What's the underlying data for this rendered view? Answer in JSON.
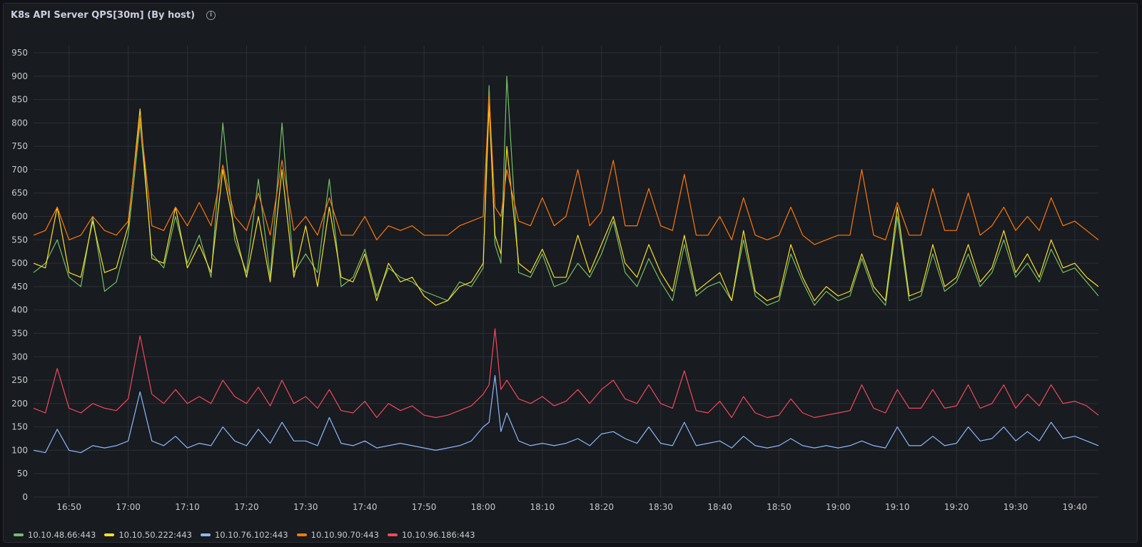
{
  "panel": {
    "title": "K8s API Server QPS[30m] (By host)",
    "info_icon": "info-circle-icon"
  },
  "colors": {
    "background": "#181b1f",
    "grid": "#2c2f36"
  },
  "chart_data": {
    "type": "line",
    "ylim": [
      0,
      950
    ],
    "yticks": [
      0,
      50,
      100,
      150,
      200,
      250,
      300,
      350,
      400,
      450,
      500,
      550,
      600,
      650,
      700,
      750,
      800,
      850,
      900,
      950
    ],
    "xlim": [
      "16:44",
      "19:44"
    ],
    "xticks": [
      "16:50",
      "17:00",
      "17:10",
      "17:20",
      "17:30",
      "17:40",
      "17:50",
      "18:00",
      "18:10",
      "18:20",
      "18:30",
      "18:40",
      "18:50",
      "19:00",
      "19:10",
      "19:20",
      "19:30",
      "19:40"
    ],
    "series": [
      {
        "name": "10.10.48.66:443",
        "color": "#73bf69",
        "x": [
          "16:44",
          "16:46",
          "16:48",
          "16:50",
          "16:52",
          "16:54",
          "16:56",
          "16:58",
          "17:00",
          "17:02",
          "17:04",
          "17:06",
          "17:08",
          "17:10",
          "17:12",
          "17:14",
          "17:16",
          "17:18",
          "17:20",
          "17:22",
          "17:24",
          "17:26",
          "17:28",
          "17:30",
          "17:32",
          "17:34",
          "17:36",
          "17:38",
          "17:40",
          "17:42",
          "17:44",
          "17:46",
          "17:48",
          "17:50",
          "17:52",
          "17:54",
          "17:56",
          "17:58",
          "18:00",
          "18:01",
          "18:02",
          "18:03",
          "18:04",
          "18:06",
          "18:08",
          "18:10",
          "18:12",
          "18:14",
          "18:16",
          "18:18",
          "18:20",
          "18:22",
          "18:24",
          "18:26",
          "18:28",
          "18:30",
          "18:32",
          "18:34",
          "18:36",
          "18:38",
          "18:40",
          "18:42",
          "18:44",
          "18:46",
          "18:48",
          "18:50",
          "18:52",
          "18:54",
          "18:56",
          "18:58",
          "19:00",
          "19:02",
          "19:04",
          "19:06",
          "19:08",
          "19:10",
          "19:12",
          "19:14",
          "19:16",
          "19:18",
          "19:20",
          "19:22",
          "19:24",
          "19:26",
          "19:28",
          "19:30",
          "19:32",
          "19:34",
          "19:36",
          "19:38",
          "19:40",
          "19:42",
          "19:44"
        ],
        "y": [
          480,
          500,
          550,
          470,
          450,
          600,
          440,
          460,
          560,
          800,
          520,
          490,
          600,
          500,
          560,
          470,
          800,
          550,
          480,
          680,
          470,
          800,
          480,
          520,
          480,
          680,
          450,
          470,
          530,
          430,
          490,
          470,
          460,
          440,
          430,
          420,
          460,
          450,
          490,
          880,
          540,
          500,
          900,
          480,
          470,
          520,
          450,
          460,
          500,
          470,
          520,
          590,
          480,
          450,
          510,
          460,
          420,
          540,
          430,
          450,
          460,
          420,
          550,
          430,
          410,
          420,
          520,
          460,
          410,
          440,
          420,
          430,
          510,
          440,
          410,
          600,
          420,
          430,
          520,
          440,
          460,
          520,
          450,
          480,
          550,
          470,
          500,
          460,
          530,
          480,
          490,
          460,
          430
        ]
      },
      {
        "name": "10.10.50.222:443",
        "color": "#fade2a",
        "x": [
          "16:44",
          "16:46",
          "16:48",
          "16:50",
          "16:52",
          "16:54",
          "16:56",
          "16:58",
          "17:00",
          "17:02",
          "17:04",
          "17:06",
          "17:08",
          "17:10",
          "17:12",
          "17:14",
          "17:16",
          "17:18",
          "17:20",
          "17:22",
          "17:24",
          "17:26",
          "17:28",
          "17:30",
          "17:32",
          "17:34",
          "17:36",
          "17:38",
          "17:40",
          "17:42",
          "17:44",
          "17:46",
          "17:48",
          "17:50",
          "17:52",
          "17:54",
          "17:56",
          "17:58",
          "18:00",
          "18:01",
          "18:02",
          "18:03",
          "18:04",
          "18:06",
          "18:08",
          "18:10",
          "18:12",
          "18:14",
          "18:16",
          "18:18",
          "18:20",
          "18:22",
          "18:24",
          "18:26",
          "18:28",
          "18:30",
          "18:32",
          "18:34",
          "18:36",
          "18:38",
          "18:40",
          "18:42",
          "18:44",
          "18:46",
          "18:48",
          "18:50",
          "18:52",
          "18:54",
          "18:56",
          "18:58",
          "19:00",
          "19:02",
          "19:04",
          "19:06",
          "19:08",
          "19:10",
          "19:12",
          "19:14",
          "19:16",
          "19:18",
          "19:20",
          "19:22",
          "19:24",
          "19:26",
          "19:28",
          "19:30",
          "19:32",
          "19:34",
          "19:36",
          "19:38",
          "19:40",
          "19:42",
          "19:44"
        ],
        "y": [
          500,
          490,
          620,
          480,
          470,
          590,
          480,
          490,
          580,
          830,
          510,
          500,
          620,
          490,
          540,
          480,
          700,
          570,
          470,
          600,
          460,
          700,
          470,
          580,
          450,
          620,
          470,
          460,
          520,
          420,
          500,
          460,
          470,
          430,
          410,
          420,
          450,
          460,
          500,
          840,
          560,
          520,
          750,
          500,
          480,
          530,
          470,
          470,
          560,
          480,
          540,
          600,
          500,
          470,
          540,
          480,
          440,
          560,
          440,
          460,
          480,
          420,
          570,
          440,
          420,
          430,
          540,
          470,
          420,
          450,
          430,
          440,
          520,
          450,
          420,
          620,
          430,
          440,
          540,
          450,
          470,
          540,
          460,
          490,
          570,
          480,
          520,
          470,
          550,
          490,
          500,
          470,
          450
        ]
      },
      {
        "name": "10.10.76.102:443",
        "color": "#8ab8ff",
        "x": [
          "16:44",
          "16:46",
          "16:48",
          "16:50",
          "16:52",
          "16:54",
          "16:56",
          "16:58",
          "17:00",
          "17:02",
          "17:04",
          "17:06",
          "17:08",
          "17:10",
          "17:12",
          "17:14",
          "17:16",
          "17:18",
          "17:20",
          "17:22",
          "17:24",
          "17:26",
          "17:28",
          "17:30",
          "17:32",
          "17:34",
          "17:36",
          "17:38",
          "17:40",
          "17:42",
          "17:44",
          "17:46",
          "17:48",
          "17:50",
          "17:52",
          "17:54",
          "17:56",
          "17:58",
          "18:00",
          "18:01",
          "18:02",
          "18:03",
          "18:04",
          "18:06",
          "18:08",
          "18:10",
          "18:12",
          "18:14",
          "18:16",
          "18:18",
          "18:20",
          "18:22",
          "18:24",
          "18:26",
          "18:28",
          "18:30",
          "18:32",
          "18:34",
          "18:36",
          "18:38",
          "18:40",
          "18:42",
          "18:44",
          "18:46",
          "18:48",
          "18:50",
          "18:52",
          "18:54",
          "18:56",
          "18:58",
          "19:00",
          "19:02",
          "19:04",
          "19:06",
          "19:08",
          "19:10",
          "19:12",
          "19:14",
          "19:16",
          "19:18",
          "19:20",
          "19:22",
          "19:24",
          "19:26",
          "19:28",
          "19:30",
          "19:32",
          "19:34",
          "19:36",
          "19:38",
          "19:40",
          "19:42",
          "19:44"
        ],
        "y": [
          100,
          95,
          145,
          100,
          95,
          110,
          105,
          110,
          120,
          225,
          120,
          110,
          130,
          105,
          115,
          110,
          150,
          120,
          110,
          145,
          115,
          160,
          120,
          120,
          110,
          170,
          115,
          110,
          120,
          105,
          110,
          115,
          110,
          105,
          100,
          105,
          110,
          120,
          150,
          160,
          260,
          140,
          180,
          120,
          110,
          115,
          110,
          115,
          125,
          110,
          135,
          140,
          125,
          115,
          150,
          115,
          110,
          160,
          110,
          115,
          120,
          105,
          130,
          110,
          105,
          110,
          125,
          110,
          105,
          110,
          105,
          110,
          120,
          110,
          105,
          150,
          110,
          110,
          130,
          110,
          115,
          150,
          120,
          125,
          150,
          120,
          140,
          120,
          160,
          125,
          130,
          120,
          110
        ]
      },
      {
        "name": "10.10.90.70:443",
        "color": "#ff780a",
        "x": [
          "16:44",
          "16:46",
          "16:48",
          "16:50",
          "16:52",
          "16:54",
          "16:56",
          "16:58",
          "17:00",
          "17:02",
          "17:04",
          "17:06",
          "17:08",
          "17:10",
          "17:12",
          "17:14",
          "17:16",
          "17:18",
          "17:20",
          "17:22",
          "17:24",
          "17:26",
          "17:28",
          "17:30",
          "17:32",
          "17:34",
          "17:36",
          "17:38",
          "17:40",
          "17:42",
          "17:44",
          "17:46",
          "17:48",
          "17:50",
          "17:52",
          "17:54",
          "17:56",
          "17:58",
          "18:00",
          "18:01",
          "18:02",
          "18:03",
          "18:04",
          "18:06",
          "18:08",
          "18:10",
          "18:12",
          "18:14",
          "18:16",
          "18:18",
          "18:20",
          "18:22",
          "18:24",
          "18:26",
          "18:28",
          "18:30",
          "18:32",
          "18:34",
          "18:36",
          "18:38",
          "18:40",
          "18:42",
          "18:44",
          "18:46",
          "18:48",
          "18:50",
          "18:52",
          "18:54",
          "18:56",
          "18:58",
          "19:00",
          "19:02",
          "19:04",
          "19:06",
          "19:08",
          "19:10",
          "19:12",
          "19:14",
          "19:16",
          "19:18",
          "19:20",
          "19:22",
          "19:24",
          "19:26",
          "19:28",
          "19:30",
          "19:32",
          "19:34",
          "19:36",
          "19:38",
          "19:40",
          "19:42",
          "19:44"
        ],
        "y": [
          560,
          570,
          620,
          550,
          560,
          600,
          570,
          560,
          590,
          810,
          580,
          570,
          620,
          580,
          630,
          580,
          710,
          600,
          570,
          650,
          560,
          720,
          570,
          600,
          560,
          640,
          560,
          560,
          600,
          550,
          580,
          570,
          580,
          560,
          560,
          560,
          580,
          590,
          600,
          860,
          620,
          600,
          700,
          590,
          580,
          640,
          580,
          600,
          700,
          580,
          610,
          720,
          580,
          580,
          660,
          580,
          570,
          690,
          560,
          560,
          600,
          550,
          640,
          560,
          550,
          560,
          620,
          560,
          540,
          550,
          560,
          560,
          700,
          560,
          550,
          630,
          560,
          560,
          660,
          570,
          570,
          650,
          560,
          580,
          620,
          570,
          600,
          570,
          640,
          580,
          590,
          570,
          550
        ]
      },
      {
        "name": "10.10.96.186:443",
        "color": "#f2495c",
        "x": [
          "16:44",
          "16:46",
          "16:48",
          "16:50",
          "16:52",
          "16:54",
          "16:56",
          "16:58",
          "17:00",
          "17:02",
          "17:04",
          "17:06",
          "17:08",
          "17:10",
          "17:12",
          "17:14",
          "17:16",
          "17:18",
          "17:20",
          "17:22",
          "17:24",
          "17:26",
          "17:28",
          "17:30",
          "17:32",
          "17:34",
          "17:36",
          "17:38",
          "17:40",
          "17:42",
          "17:44",
          "17:46",
          "17:48",
          "17:50",
          "17:52",
          "17:54",
          "17:56",
          "17:58",
          "18:00",
          "18:01",
          "18:02",
          "18:03",
          "18:04",
          "18:06",
          "18:08",
          "18:10",
          "18:12",
          "18:14",
          "18:16",
          "18:18",
          "18:20",
          "18:22",
          "18:24",
          "18:26",
          "18:28",
          "18:30",
          "18:32",
          "18:34",
          "18:36",
          "18:38",
          "18:40",
          "18:42",
          "18:44",
          "18:46",
          "18:48",
          "18:50",
          "18:52",
          "18:54",
          "18:56",
          "18:58",
          "19:00",
          "19:02",
          "19:04",
          "19:06",
          "19:08",
          "19:10",
          "19:12",
          "19:14",
          "19:16",
          "19:18",
          "19:20",
          "19:22",
          "19:24",
          "19:26",
          "19:28",
          "19:30",
          "19:32",
          "19:34",
          "19:36",
          "19:38",
          "19:40",
          "19:42",
          "19:44"
        ],
        "y": [
          190,
          180,
          275,
          190,
          180,
          200,
          190,
          185,
          210,
          345,
          220,
          200,
          230,
          200,
          215,
          200,
          250,
          215,
          200,
          235,
          195,
          250,
          200,
          215,
          190,
          230,
          185,
          180,
          205,
          170,
          200,
          185,
          195,
          175,
          170,
          175,
          185,
          195,
          220,
          240,
          360,
          230,
          250,
          210,
          200,
          215,
          195,
          205,
          230,
          200,
          230,
          250,
          210,
          200,
          240,
          200,
          190,
          270,
          185,
          180,
          205,
          170,
          215,
          180,
          170,
          175,
          210,
          180,
          170,
          175,
          180,
          185,
          240,
          190,
          180,
          230,
          190,
          190,
          230,
          190,
          195,
          240,
          190,
          200,
          240,
          190,
          220,
          195,
          240,
          200,
          205,
          195,
          175
        ]
      }
    ]
  }
}
